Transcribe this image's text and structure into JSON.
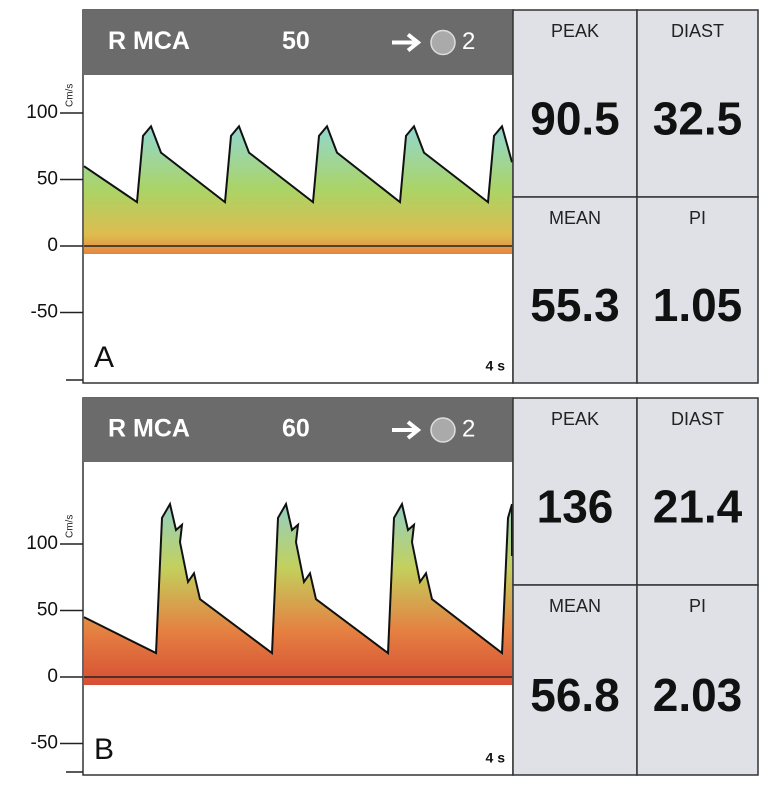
{
  "panels": [
    {
      "label": "A",
      "vessel": "R MCA",
      "depth": 50,
      "gate": 2,
      "unit": "Cm/s",
      "yticks": [
        100,
        50,
        0,
        -50
      ],
      "duration": "4 s",
      "metrics": [
        {
          "name": "PEAK",
          "value": 90.5
        },
        {
          "name": "DIAST",
          "value": 32.5
        },
        {
          "name": "MEAN",
          "value": 55.3
        },
        {
          "name": "PI",
          "value": 1.05
        }
      ]
    },
    {
      "label": "B",
      "vessel": "R MCA",
      "depth": 60,
      "gate": 2,
      "unit": "Cm/s",
      "yticks": [
        100,
        50,
        0,
        -50
      ],
      "duration": "4 s",
      "metrics": [
        {
          "name": "PEAK",
          "value": 136
        },
        {
          "name": "DIAST",
          "value": 21.4
        },
        {
          "name": "MEAN",
          "value": 56.8
        },
        {
          "name": "PI",
          "value": 2.03
        }
      ]
    }
  ]
}
